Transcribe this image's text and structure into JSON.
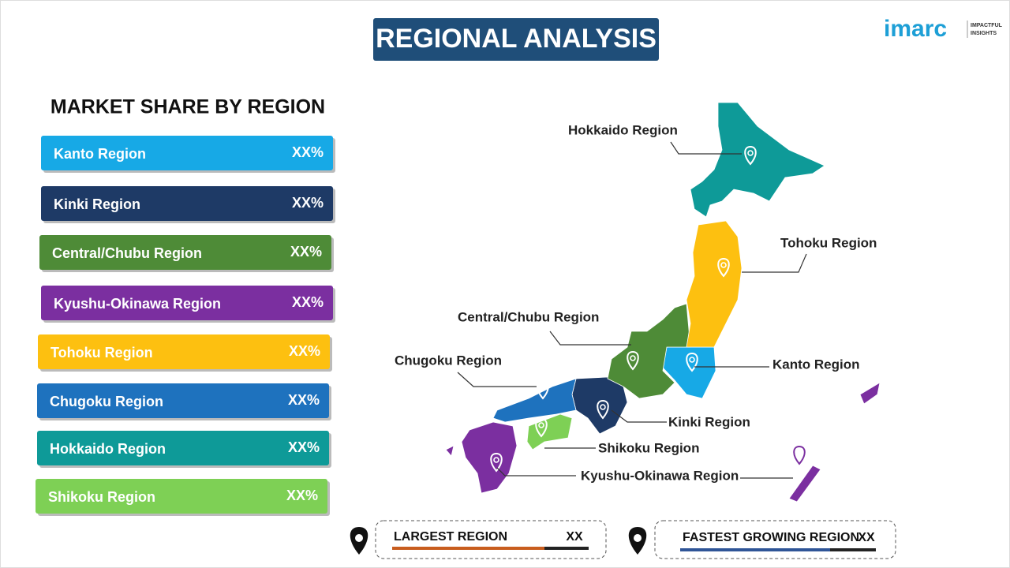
{
  "header": {
    "title": "REGIONAL ANALYSIS"
  },
  "logo": {
    "name": "imarc",
    "tagline_1": "IMPACTFUL",
    "tagline_2": "INSIGHTS"
  },
  "market_share": {
    "title": "MARKET SHARE BY REGION",
    "rows": [
      {
        "label": "Kanto Region",
        "value": "XX%",
        "color": "#17a9e6"
      },
      {
        "label": "Kinki Region",
        "value": "XX%",
        "color": "#1e3a66"
      },
      {
        "label": "Central/Chubu  Region",
        "value": "XX%",
        "color": "#4e8b37"
      },
      {
        "label": "Kyushu-Okinawa  Region",
        "value": "XX%",
        "color": "#7b2fa0"
      },
      {
        "label": "Tohoku Region",
        "value": "XX%",
        "color": "#fdc010"
      },
      {
        "label": "Chugoku Region",
        "value": "XX%",
        "color": "#1e72be"
      },
      {
        "label": "Hokkaido  Region",
        "value": "XX%",
        "color": "#0e9a98"
      },
      {
        "label": "Shikoku  Region",
        "value": "XX%",
        "color": "#7ed055"
      }
    ]
  },
  "map": {
    "labels": [
      "Kanto Region",
      "Kinki Region",
      "Central/Chubu Region",
      "Kyushu-Okinawa Region",
      "Tohoku Region",
      "Chugoku Region",
      "Hokkaido Region",
      "Shikoku Region"
    ]
  },
  "footer": {
    "largest": {
      "label": "LARGEST REGION",
      "value": "XX"
    },
    "fastest": {
      "label": "FASTEST GROWING REGION",
      "value": "XX"
    }
  }
}
